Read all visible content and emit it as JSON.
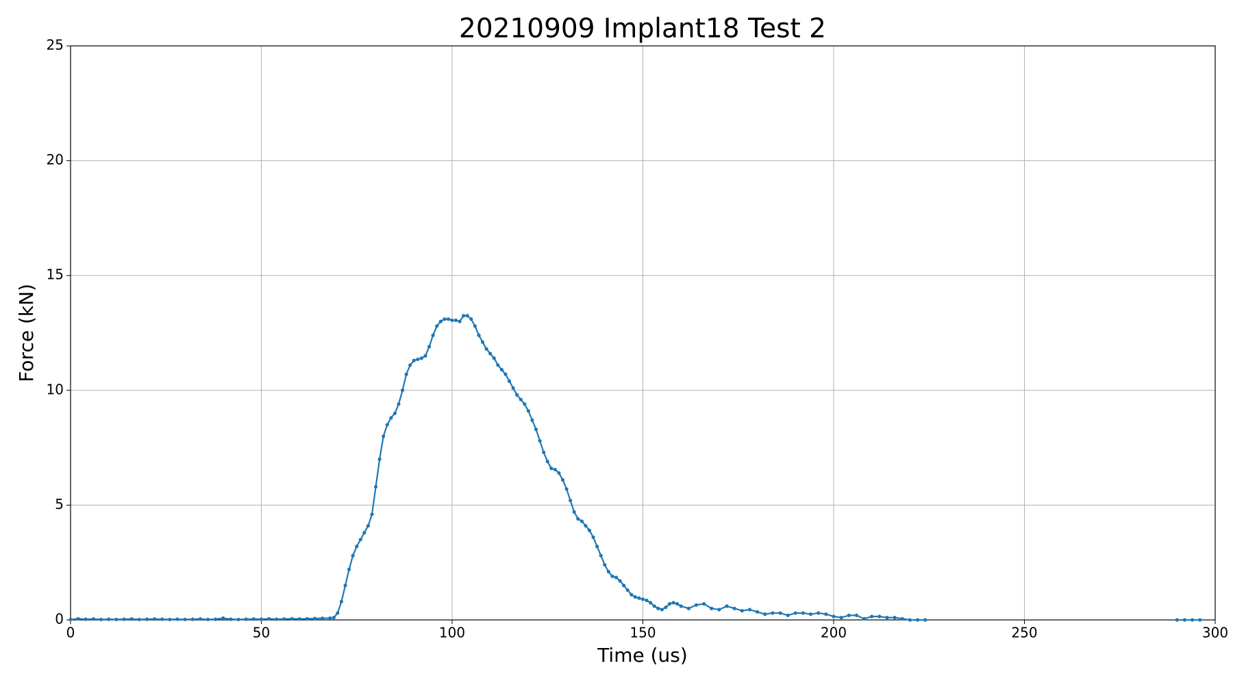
{
  "chart_data": {
    "type": "line",
    "title": "20210909 Implant18 Test 2",
    "xlabel": "Time (us)",
    "ylabel": "Force (kN)",
    "x": [
      0,
      2,
      4,
      6,
      8,
      10,
      12,
      14,
      16,
      18,
      20,
      22,
      24,
      26,
      28,
      30,
      32,
      34,
      36,
      38,
      40,
      42,
      44,
      46,
      48,
      50,
      52,
      54,
      56,
      58,
      60,
      62,
      64,
      66,
      68,
      69,
      70,
      71,
      72,
      73,
      74,
      75,
      76,
      77,
      78,
      79,
      80,
      81,
      82,
      83,
      84,
      85,
      86,
      87,
      88,
      89,
      90,
      91,
      92,
      93,
      94,
      95,
      96,
      97,
      98,
      99,
      100,
      101,
      102,
      103,
      104,
      105,
      106,
      107,
      108,
      109,
      110,
      111,
      112,
      113,
      114,
      115,
      116,
      117,
      118,
      119,
      120,
      121,
      122,
      123,
      124,
      125,
      126,
      127,
      128,
      129,
      130,
      131,
      132,
      133,
      134,
      135,
      136,
      137,
      138,
      139,
      140,
      141,
      142,
      143,
      144,
      145,
      146,
      147,
      148,
      149,
      150,
      151,
      152,
      153,
      154,
      155,
      156,
      157,
      158,
      159,
      160,
      162,
      164,
      166,
      168,
      170,
      172,
      174,
      176,
      178,
      180,
      182,
      184,
      186,
      188,
      190,
      192,
      194,
      196,
      198,
      200,
      202,
      204,
      206,
      208,
      210,
      212,
      214,
      216,
      218,
      220,
      222,
      224,
      226,
      290,
      292,
      294,
      296
    ],
    "values": [
      0.02,
      0.05,
      0.03,
      0.04,
      0.02,
      0.03,
      0.02,
      0.03,
      0.04,
      0.02,
      0.03,
      0.04,
      0.03,
      0.02,
      0.03,
      0.02,
      0.03,
      0.04,
      0.02,
      0.03,
      0.08,
      0.03,
      0.02,
      0.03,
      0.04,
      0.03,
      0.05,
      0.03,
      0.04,
      0.05,
      0.04,
      0.05,
      0.06,
      0.07,
      0.08,
      0.1,
      0.3,
      0.8,
      1.5,
      2.2,
      2.8,
      3.2,
      3.5,
      3.8,
      4.1,
      4.6,
      5.8,
      7.0,
      8.0,
      8.5,
      8.8,
      9.0,
      9.4,
      10.0,
      10.7,
      11.1,
      11.3,
      11.35,
      11.4,
      11.5,
      11.9,
      12.4,
      12.8,
      13.0,
      13.1,
      13.1,
      13.05,
      13.05,
      13.0,
      13.25,
      13.25,
      13.1,
      12.8,
      12.4,
      12.1,
      11.8,
      11.6,
      11.4,
      11.1,
      10.9,
      10.7,
      10.4,
      10.1,
      9.8,
      9.6,
      9.4,
      9.1,
      8.7,
      8.3,
      7.8,
      7.3,
      6.9,
      6.6,
      6.55,
      6.4,
      6.1,
      5.7,
      5.2,
      4.7,
      4.4,
      4.3,
      4.1,
      3.9,
      3.6,
      3.2,
      2.8,
      2.4,
      2.1,
      1.9,
      1.85,
      1.7,
      1.5,
      1.3,
      1.1,
      1.0,
      0.95,
      0.9,
      0.85,
      0.75,
      0.6,
      0.5,
      0.45,
      0.55,
      0.7,
      0.75,
      0.7,
      0.6,
      0.5,
      0.65,
      0.7,
      0.5,
      0.45,
      0.6,
      0.5,
      0.4,
      0.45,
      0.35,
      0.25,
      0.3,
      0.3,
      0.2,
      0.3,
      0.3,
      0.25,
      0.3,
      0.25,
      0.15,
      0.1,
      0.2,
      0.2,
      0.05,
      0.15,
      0.15,
      0.1,
      0.1,
      0.05,
      0,
      0,
      0,
      null,
      0,
      0,
      0,
      0
    ],
    "color": "#1f77b4",
    "marker": true,
    "xlim": [
      0,
      300
    ],
    "xticks": [
      0,
      50,
      100,
      150,
      200,
      250,
      300
    ],
    "ylim": [
      0,
      25
    ],
    "yticks": [
      0,
      5,
      10,
      15,
      20,
      25
    ],
    "grid": true
  }
}
